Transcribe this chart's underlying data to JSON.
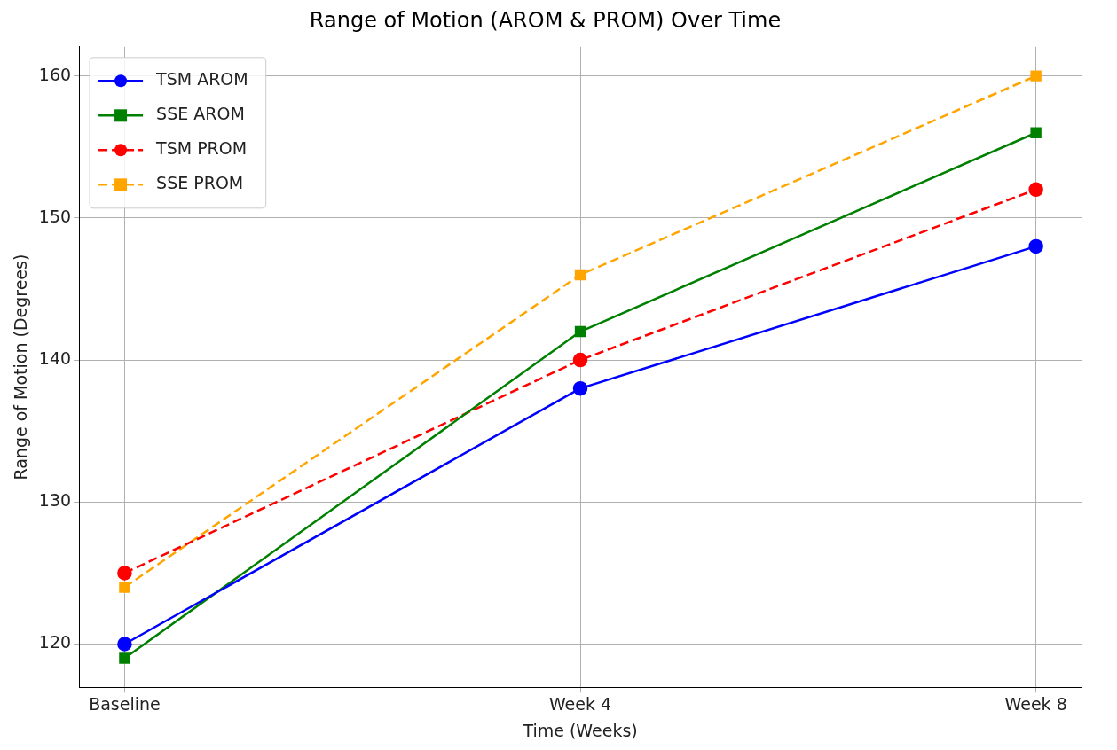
{
  "chart_data": {
    "type": "line",
    "title": "Range of Motion (AROM & PROM) Over Time",
    "xlabel": "Time (Weeks)",
    "ylabel": "Range of Motion (Degrees)",
    "categories": [
      "Baseline",
      "Week 4",
      "Week 8"
    ],
    "series": [
      {
        "name": "TSM AROM",
        "color": "#0000ff",
        "values": [
          120,
          138,
          148
        ],
        "marker": "circle",
        "line_style": "solid"
      },
      {
        "name": "SSE AROM",
        "color": "#008000",
        "values": [
          119,
          142,
          156
        ],
        "marker": "square",
        "line_style": "solid"
      },
      {
        "name": "TSM PROM",
        "color": "#ff0000",
        "values": [
          125,
          140,
          152
        ],
        "marker": "circle",
        "line_style": "dashed"
      },
      {
        "name": "SSE PROM",
        "color": "#ffa500",
        "values": [
          124,
          146,
          160
        ],
        "marker": "square",
        "line_style": "dashed"
      }
    ],
    "ylim": [
      116.95,
      162.05
    ],
    "yticks": [
      120,
      130,
      140,
      150,
      160
    ],
    "grid": true,
    "legend": "top left"
  }
}
